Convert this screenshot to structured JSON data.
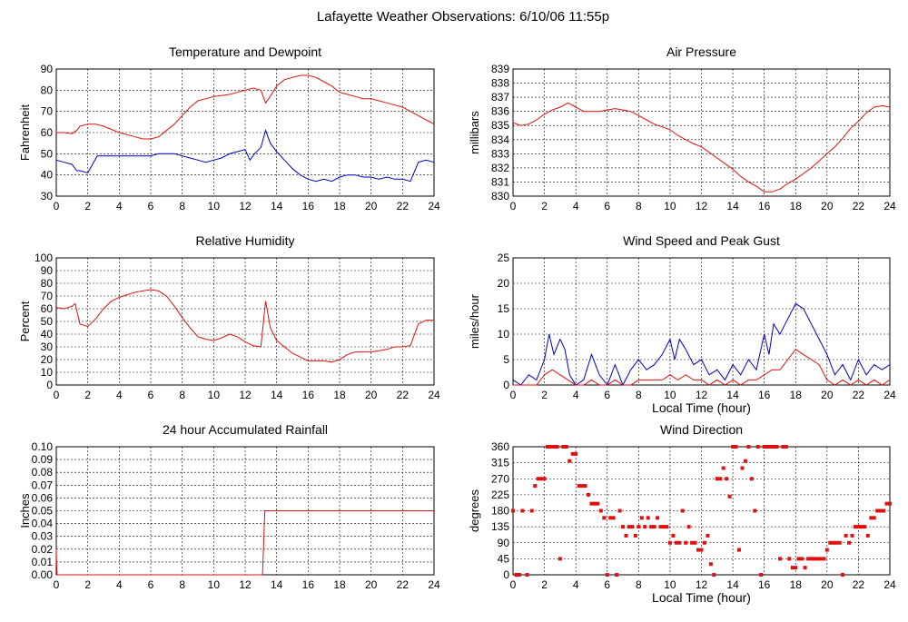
{
  "title": "Lafayette Weather Observations: 6/10/06 11:55p",
  "colors": {
    "red": "#e01010",
    "blue": "#0000c0",
    "grid": "#000000"
  },
  "chart_data": [
    {
      "id": "temp",
      "type": "line",
      "title": "Temperature and Dewpoint",
      "xlabel": "",
      "ylabel": "Fahrenheit",
      "xlim": [
        0,
        24
      ],
      "ylim": [
        30,
        90
      ],
      "xticks": [
        0,
        2,
        4,
        6,
        8,
        10,
        12,
        14,
        16,
        18,
        20,
        22,
        24
      ],
      "yticks": [
        30,
        40,
        50,
        60,
        70,
        80,
        90
      ],
      "grid": true,
      "series": [
        {
          "color": "#e01010",
          "x": [
            0,
            0.5,
            1,
            1.3,
            1.5,
            2,
            2.5,
            3,
            3.5,
            4,
            4.5,
            5,
            5.5,
            6,
            6.5,
            7,
            7.5,
            8,
            8.5,
            9,
            9.5,
            10,
            10.5,
            11,
            11.5,
            12,
            12.5,
            13,
            13.3,
            13.5,
            14,
            14.5,
            15,
            15.5,
            16,
            16.5,
            17,
            17.5,
            18,
            18.5,
            19,
            19.5,
            20,
            20.5,
            21,
            21.5,
            22,
            22.5,
            23,
            23.5,
            24
          ],
          "y": [
            60,
            60,
            59.5,
            61,
            63,
            64,
            64,
            63,
            61.5,
            60,
            59,
            58,
            57,
            57,
            58,
            61,
            64,
            68,
            72,
            75,
            76,
            77,
            77.5,
            78,
            79,
            80,
            81,
            80,
            74,
            76,
            82,
            85,
            86,
            87,
            87,
            86,
            84,
            82,
            79,
            78,
            77,
            76,
            76,
            75,
            74,
            73,
            72,
            70,
            68,
            66,
            64
          ]
        },
        {
          "color": "#0000c0",
          "x": [
            0,
            0.5,
            1,
            1.3,
            1.5,
            2,
            2.3,
            2.6,
            3,
            4,
            5,
            6,
            6.5,
            7,
            7.5,
            8,
            8.5,
            9,
            9.5,
            10,
            10.5,
            11,
            11.5,
            12,
            12.3,
            12.6,
            13,
            13.3,
            13.6,
            14,
            14.5,
            15,
            15.5,
            16,
            16.5,
            17,
            17.5,
            18,
            18.5,
            19,
            19.5,
            20,
            20.5,
            21,
            21.5,
            22,
            22.5,
            23,
            23.5,
            24
          ],
          "y": [
            47,
            46,
            45,
            42,
            42,
            41,
            45,
            49,
            49,
            49,
            49,
            49,
            50,
            50,
            50,
            49,
            48,
            47,
            46,
            47,
            48,
            50,
            51,
            52,
            47,
            50,
            53,
            61,
            55,
            51,
            47,
            43,
            40,
            38,
            37,
            38,
            37,
            39,
            40,
            40,
            39,
            39,
            38,
            39,
            38,
            38,
            37,
            46,
            47,
            46
          ]
        }
      ]
    },
    {
      "id": "pressure",
      "type": "line",
      "title": "Air Pressure",
      "xlabel": "",
      "ylabel": "millibars",
      "xlim": [
        0,
        24
      ],
      "ylim": [
        830,
        839
      ],
      "xticks": [
        0,
        2,
        4,
        6,
        8,
        10,
        12,
        14,
        16,
        18,
        20,
        22,
        24
      ],
      "yticks": [
        830,
        831,
        832,
        833,
        834,
        835,
        836,
        837,
        838,
        839
      ],
      "grid": true,
      "series": [
        {
          "color": "#e01010",
          "x": [
            0,
            0.5,
            1,
            1.5,
            2,
            2.5,
            3,
            3.5,
            4,
            4.5,
            5,
            5.5,
            6,
            6.5,
            7,
            7.5,
            8,
            8.5,
            9,
            9.5,
            10,
            10.5,
            11,
            11.5,
            12,
            12.5,
            13,
            13.5,
            14,
            14.5,
            15,
            15.5,
            16,
            16.5,
            17,
            17.5,
            18,
            18.5,
            19,
            19.5,
            20,
            20.5,
            21,
            21.5,
            22,
            22.5,
            23,
            23.5,
            24
          ],
          "y": [
            835.2,
            835.0,
            835.1,
            835.4,
            835.8,
            836.1,
            836.3,
            836.6,
            836.3,
            836.0,
            836.0,
            836.0,
            836.1,
            836.2,
            836.1,
            836.0,
            835.7,
            835.4,
            835.1,
            834.9,
            834.7,
            834.3,
            834.0,
            833.7,
            833.5,
            833.1,
            832.7,
            832.3,
            831.9,
            831.4,
            831.0,
            830.7,
            830.3,
            830.3,
            830.5,
            830.9,
            831.2,
            831.6,
            832.0,
            832.5,
            833.0,
            833.5,
            834.1,
            834.8,
            835.3,
            835.9,
            836.3,
            836.4,
            836.3
          ]
        }
      ]
    },
    {
      "id": "humidity",
      "type": "line",
      "title": "Relative Humidity",
      "xlabel": "",
      "ylabel": "Percent",
      "xlim": [
        0,
        24
      ],
      "ylim": [
        0,
        100
      ],
      "xticks": [
        0,
        2,
        4,
        6,
        8,
        10,
        12,
        14,
        16,
        18,
        20,
        22,
        24
      ],
      "yticks": [
        0,
        10,
        20,
        30,
        40,
        50,
        60,
        70,
        80,
        90,
        100
      ],
      "grid": true,
      "series": [
        {
          "color": "#e01010",
          "x": [
            0,
            0.5,
            1,
            1.2,
            1.5,
            2,
            2.5,
            3,
            3.5,
            4,
            4.5,
            5,
            5.5,
            6,
            6.5,
            7,
            7.5,
            8,
            8.5,
            9,
            9.5,
            10,
            10.5,
            11,
            11.5,
            12,
            12.5,
            13,
            13.3,
            13.6,
            14,
            14.5,
            15,
            15.5,
            16,
            16.5,
            17,
            17.5,
            18,
            18.5,
            19,
            19.5,
            20,
            20.5,
            21,
            21.5,
            22,
            22.5,
            23,
            23.5,
            24
          ],
          "y": [
            61,
            60,
            62,
            64,
            48,
            46,
            52,
            60,
            66,
            69,
            71,
            73,
            74,
            75,
            74,
            70,
            62,
            53,
            45,
            38,
            36,
            35,
            37,
            40,
            38,
            34,
            31,
            30,
            66,
            45,
            35,
            30,
            25,
            22,
            19,
            19,
            19,
            18,
            20,
            24,
            26,
            26,
            26,
            27,
            28,
            30,
            30,
            31,
            48,
            51,
            51
          ]
        }
      ]
    },
    {
      "id": "wind",
      "type": "line",
      "title": "Wind Speed and Peak Gust",
      "xlabel": "Local Time (hour)",
      "ylabel": "miles/hour",
      "xlim": [
        0,
        24
      ],
      "ylim": [
        0,
        25
      ],
      "xticks": [
        0,
        2,
        4,
        6,
        8,
        10,
        12,
        14,
        16,
        18,
        20,
        22,
        24
      ],
      "yticks": [
        0,
        5,
        10,
        15,
        20,
        25
      ],
      "grid": true,
      "series": [
        {
          "color": "#0000c0",
          "x": [
            0,
            0.5,
            1,
            1.5,
            2,
            2.3,
            2.6,
            3,
            3.3,
            3.6,
            4,
            4.5,
            5,
            5.5,
            6,
            6.5,
            7,
            7.5,
            8,
            8.5,
            9,
            9.5,
            10,
            10.3,
            10.6,
            11,
            11.5,
            12,
            12.5,
            13,
            13.5,
            14,
            14.5,
            15,
            15.5,
            16,
            16.3,
            16.6,
            17,
            17.5,
            18,
            18.5,
            19,
            19.5,
            20,
            20.5,
            21,
            21.5,
            22,
            22.5,
            23,
            23.5,
            24
          ],
          "y": [
            1,
            0,
            2,
            1,
            5,
            10,
            6,
            9,
            7,
            2,
            0,
            1,
            6,
            2,
            0,
            4,
            0,
            3,
            5,
            3,
            4,
            6,
            9,
            5,
            9,
            7,
            4,
            5,
            2,
            3,
            1,
            4,
            2,
            5,
            3,
            10,
            6,
            12,
            10,
            13,
            16,
            15,
            12,
            9,
            6,
            2,
            4,
            1,
            5,
            2,
            4,
            3,
            4
          ]
        },
        {
          "color": "#e01010",
          "x": [
            0,
            0.5,
            1,
            1.5,
            2,
            2.5,
            3,
            3.5,
            4,
            4.5,
            5,
            5.5,
            6,
            6.5,
            7,
            7.5,
            8,
            8.5,
            9,
            9.5,
            10,
            10.5,
            11,
            11.5,
            12,
            12.5,
            13,
            13.5,
            14,
            14.5,
            15,
            15.5,
            16,
            16.5,
            17,
            17.5,
            18,
            18.5,
            19,
            19.5,
            20,
            20.5,
            21,
            21.5,
            22,
            22.5,
            23,
            23.5,
            24
          ],
          "y": [
            0,
            0,
            0,
            0,
            2,
            3,
            2,
            1,
            0,
            0,
            1,
            0,
            0,
            1,
            0,
            0,
            1,
            1,
            1,
            1,
            2,
            1,
            2,
            1,
            1,
            0,
            1,
            0,
            1,
            0,
            1,
            1,
            2,
            3,
            3,
            5,
            7,
            6,
            5,
            4,
            1,
            0,
            1,
            0,
            1,
            0,
            1,
            0,
            1
          ]
        }
      ]
    },
    {
      "id": "rain",
      "type": "line",
      "title": "24 hour Accumulated Rainfall",
      "xlabel": "",
      "ylabel": "Inches",
      "xlim": [
        0,
        24
      ],
      "ylim": [
        0,
        0.1
      ],
      "xticks": [
        0,
        2,
        4,
        6,
        8,
        10,
        12,
        14,
        16,
        18,
        20,
        22,
        24
      ],
      "yticks": [
        "0.00",
        "0.01",
        "0.02",
        "0.03",
        "0.04",
        "0.05",
        "0.06",
        "0.07",
        "0.08",
        "0.09",
        "0.10"
      ],
      "grid": true,
      "series": [
        {
          "color": "#e01010",
          "x": [
            0,
            0.02,
            0.05,
            13.1,
            13.25,
            24
          ],
          "y": [
            0.02,
            0.01,
            0,
            0,
            0.05,
            0.05
          ]
        }
      ]
    },
    {
      "id": "direction",
      "type": "scatter",
      "title": "Wind Direction",
      "xlabel": "Local Time (hour)",
      "ylabel": "degrees",
      "xlim": [
        0,
        24
      ],
      "ylim": [
        0,
        360
      ],
      "xticks": [
        0,
        2,
        4,
        6,
        8,
        10,
        12,
        14,
        16,
        18,
        20,
        22,
        24
      ],
      "yticks": [
        0,
        45,
        90,
        135,
        180,
        225,
        270,
        315,
        360
      ],
      "grid": true,
      "series": [
        {
          "color": "#e01010",
          "x": [
            0,
            0.2,
            0.4,
            0.6,
            0.9,
            1.2,
            1.4,
            1.6,
            1.8,
            2.0,
            2.2,
            2.4,
            2.6,
            2.8,
            3.0,
            3.2,
            3.4,
            3.6,
            3.8,
            4.0,
            4.2,
            4.4,
            4.6,
            4.8,
            5.0,
            5.2,
            5.4,
            5.6,
            5.8,
            6.0,
            6.2,
            6.4,
            6.6,
            6.8,
            7.0,
            7.2,
            7.4,
            7.6,
            7.8,
            8.0,
            8.2,
            8.4,
            8.6,
            8.8,
            9.0,
            9.2,
            9.4,
            9.6,
            9.8,
            10.0,
            10.2,
            10.4,
            10.6,
            10.8,
            11.0,
            11.2,
            11.4,
            11.6,
            11.8,
            12.0,
            12.2,
            12.4,
            12.6,
            12.8,
            13.0,
            13.2,
            13.4,
            13.6,
            13.8,
            14.0,
            14.2,
            14.4,
            14.6,
            14.8,
            15.0,
            15.2,
            15.4,
            15.6,
            15.8,
            16.0,
            16.2,
            16.4,
            16.6,
            16.8,
            17.0,
            17.2,
            17.4,
            17.6,
            17.8,
            18.0,
            18.2,
            18.4,
            18.6,
            18.8,
            19.0,
            19.2,
            19.4,
            19.6,
            19.8,
            20.0,
            20.2,
            20.4,
            20.6,
            20.8,
            21.0,
            21.2,
            21.4,
            21.6,
            21.8,
            22.0,
            22.2,
            22.4,
            22.6,
            22.8,
            23.0,
            23.2,
            23.4,
            23.6,
            23.8,
            24.0
          ],
          "y": [
            180,
            0,
            0,
            180,
            0,
            180,
            250,
            270,
            270,
            270,
            360,
            360,
            360,
            360,
            45,
            360,
            360,
            320,
            340,
            340,
            250,
            250,
            250,
            225,
            200,
            200,
            200,
            180,
            160,
            0,
            160,
            160,
            0,
            180,
            135,
            110,
            135,
            135,
            110,
            135,
            160,
            135,
            160,
            135,
            135,
            160,
            135,
            135,
            135,
            90,
            110,
            90,
            90,
            180,
            90,
            135,
            90,
            90,
            70,
            70,
            90,
            110,
            30,
            0,
            270,
            270,
            300,
            270,
            220,
            360,
            360,
            70,
            300,
            320,
            360,
            270,
            180,
            360,
            0,
            360,
            360,
            360,
            360,
            360,
            45,
            360,
            360,
            45,
            20,
            20,
            45,
            45,
            20,
            45,
            45,
            45,
            45,
            45,
            45,
            70,
            90,
            90,
            90,
            90,
            0,
            110,
            90,
            110,
            135,
            135,
            135,
            135,
            110,
            160,
            160,
            180,
            180,
            180,
            200,
            200
          ]
        }
      ]
    }
  ]
}
